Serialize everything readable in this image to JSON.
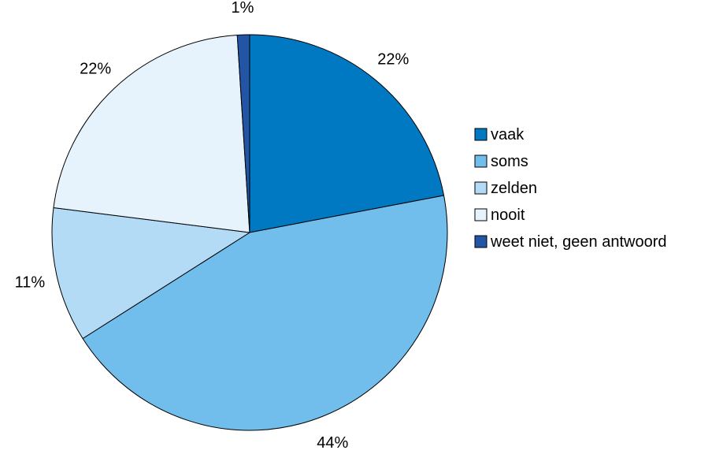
{
  "chart_data": {
    "type": "pie",
    "title": "",
    "start_angle_deg": 0,
    "direction": "clockwise",
    "slices": [
      {
        "label": "vaak",
        "value": 22,
        "display": "22%",
        "color": "#0079C2"
      },
      {
        "label": "soms",
        "value": 44,
        "display": "44%",
        "color": "#71BDEC"
      },
      {
        "label": "zelden",
        "value": 11,
        "display": "11%",
        "color": "#B4DBF5"
      },
      {
        "label": "nooit",
        "value": 22,
        "display": "22%",
        "color": "#E6F2FC"
      },
      {
        "label": "weet niet, geen antwoord",
        "value": 1,
        "display": "1%",
        "color": "#2355A5"
      }
    ],
    "legend_position": "right"
  }
}
